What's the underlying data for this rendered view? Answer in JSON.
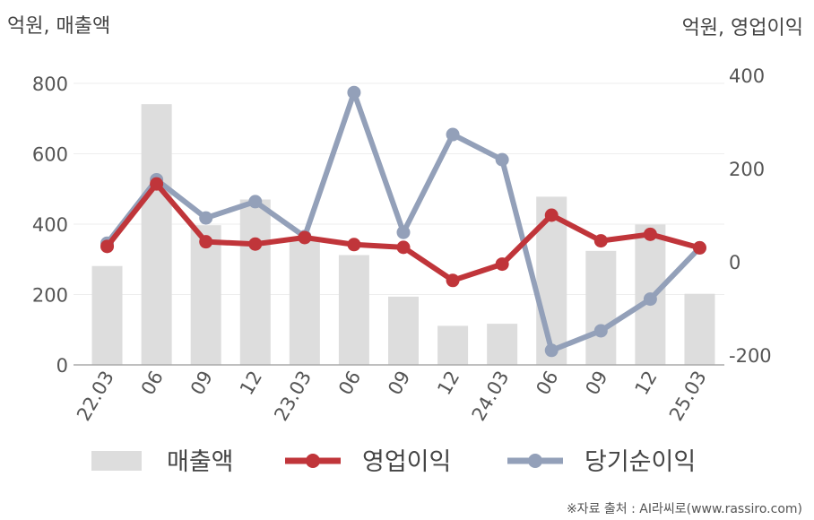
{
  "chart_data": {
    "type": "bar+line",
    "left_axis_unit": "억원, 매출액",
    "right_axis_unit": "억원, 영업이익",
    "categories": [
      "22.03",
      "06",
      "09",
      "12",
      "23.03",
      "06",
      "09",
      "12",
      "24.03",
      "06",
      "09",
      "12",
      "25.03"
    ],
    "left_axis": {
      "ylim": [
        0,
        800
      ],
      "ticks": [
        0,
        200,
        400,
        600,
        800
      ]
    },
    "right_axis": {
      "ylim": [
        -200,
        400
      ],
      "ticks": [
        -200,
        0,
        200,
        400
      ]
    },
    "series": [
      {
        "name": "매출액",
        "type": "bar",
        "axis": "left",
        "color": "#dddddd",
        "values": [
          281,
          741,
          397,
          470,
          362,
          312,
          194,
          111,
          117,
          478,
          324,
          399,
          202
        ]
      },
      {
        "name": "영업이익",
        "type": "line",
        "axis": "right",
        "color": "#c0353a",
        "values": [
          33,
          167,
          43,
          38,
          52,
          37,
          31,
          -40,
          -5,
          100,
          45,
          59,
          30
        ]
      },
      {
        "name": "당기순이익",
        "type": "line",
        "axis": "right",
        "color": "#93a0b9",
        "values": [
          40,
          176,
          94,
          129,
          54,
          363,
          63,
          273,
          219,
          -190,
          -148,
          -80,
          30
        ]
      }
    ],
    "grid": true,
    "legend": "bottom"
  },
  "source_note": "※자료 출처 : AI라씨로(www.rassiro.com)"
}
